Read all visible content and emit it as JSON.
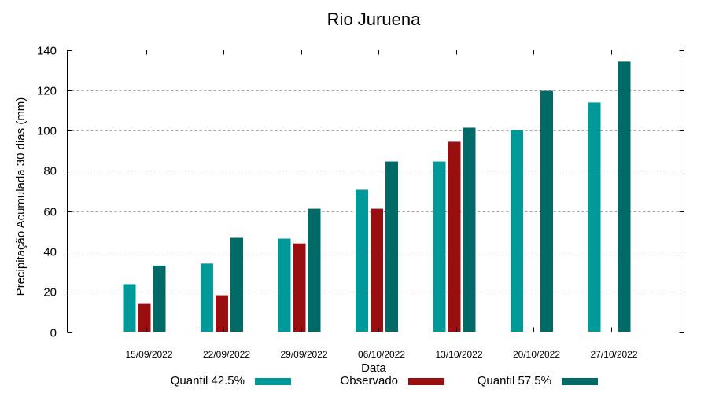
{
  "chart_data": {
    "type": "bar",
    "title": "Rio Juruena",
    "xlabel": "Data",
    "ylabel": "Precipitação Acumulada 30 dias (mm)",
    "ylim": [
      0,
      140
    ],
    "yticks": [
      0,
      20,
      40,
      60,
      80,
      100,
      120,
      140
    ],
    "grid": true,
    "legend_position": "bottom",
    "categories": [
      "15/09/2022",
      "22/09/2022",
      "29/09/2022",
      "06/10/2022",
      "13/10/2022",
      "20/10/2022",
      "27/10/2022"
    ],
    "series": [
      {
        "name": "Quantil 42.5%",
        "color": "#009999",
        "values": [
          23.8,
          34.0,
          46.4,
          70.6,
          84.6,
          100.2,
          113.9
        ]
      },
      {
        "name": "Observado",
        "color": "#990f0f",
        "values": [
          14.0,
          18.3,
          44.0,
          61.2,
          94.4,
          null,
          null
        ]
      },
      {
        "name": "Quantil 57.5%",
        "color": "#006a66",
        "values": [
          33.0,
          46.8,
          61.2,
          84.6,
          101.4,
          119.7,
          134.2
        ]
      }
    ]
  }
}
